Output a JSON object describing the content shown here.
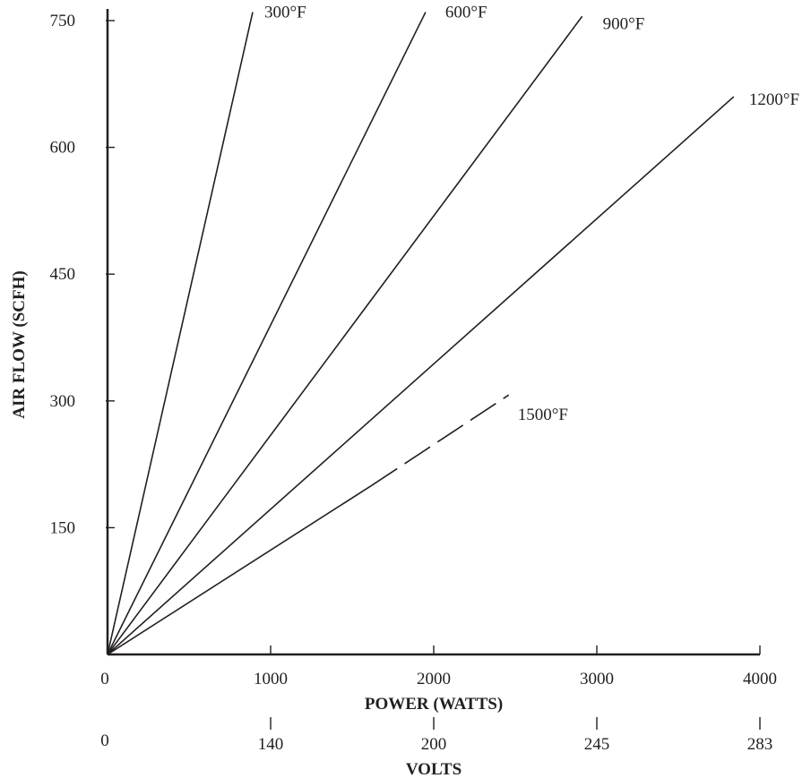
{
  "chart_data": {
    "type": "line",
    "title": "",
    "xlabel": "POWER (WATTS)",
    "ylabel": "AIR FLOW (SCFH)",
    "secondary_xlabel": "VOLTS",
    "xlim": [
      0,
      4000
    ],
    "ylim": [
      0,
      750
    ],
    "x_ticks": [
      "0",
      "1000",
      "2000",
      "3000",
      "4000"
    ],
    "x_tick_values": [
      0,
      1000,
      2000,
      3000,
      4000
    ],
    "y_ticks": [
      "150",
      "300",
      "450",
      "600",
      "750"
    ],
    "y_tick_values": [
      150,
      300,
      450,
      600,
      750
    ],
    "secondary_x_ticks": [
      {
        "label": "0",
        "watts": 0
      },
      {
        "label": "140",
        "watts": 1000
      },
      {
        "label": "200",
        "watts": 2000
      },
      {
        "label": "245",
        "watts": 3000
      },
      {
        "label": "283",
        "watts": 4000
      }
    ],
    "grid": false,
    "legend": "none",
    "series": [
      {
        "name": "300°F",
        "x": [
          0,
          890
        ],
        "y": [
          0,
          760
        ],
        "style": "solid"
      },
      {
        "name": "600°F",
        "x": [
          0,
          1950
        ],
        "y": [
          0,
          760
        ],
        "style": "solid"
      },
      {
        "name": "900°F",
        "x": [
          0,
          2910
        ],
        "y": [
          0,
          755
        ],
        "style": "solid"
      },
      {
        "name": "1200°F",
        "x": [
          0,
          3840
        ],
        "y": [
          0,
          660
        ],
        "style": "solid"
      },
      {
        "name": "1500°F",
        "x": [
          0,
          1620,
          2460
        ],
        "y": [
          0,
          200,
          307
        ],
        "style": "solid-then-dashed"
      }
    ]
  }
}
